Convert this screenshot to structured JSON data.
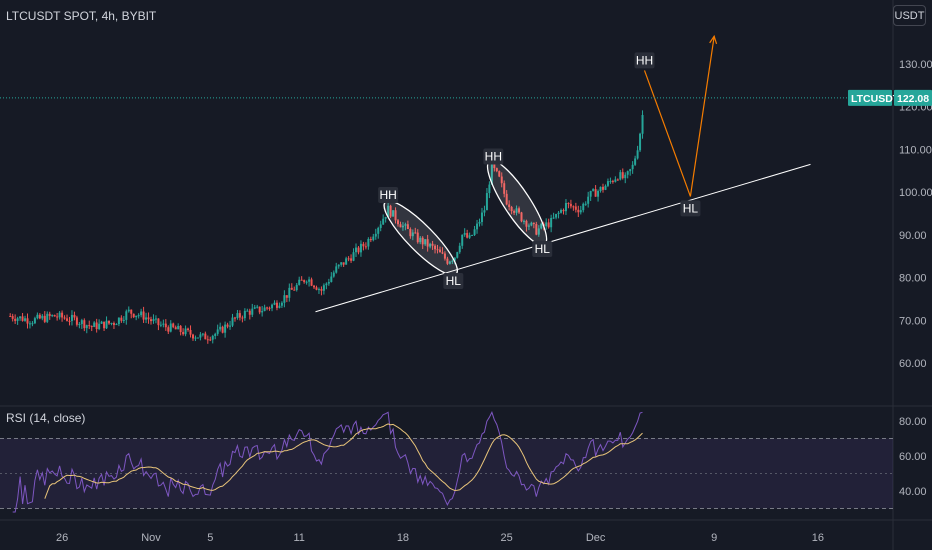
{
  "title": "LTCUSDT SPOT, 4h, BYBIT",
  "currency_button": "USDT",
  "symbol_tag": "LTCUSDT",
  "last_price": "122.08",
  "rsi_label": "RSI (14, close)",
  "colors": {
    "background": "#161a25",
    "up": "#26a69a",
    "down": "#ef5350",
    "rsi_line": "#7e57c2",
    "rsi_ma": "#e8c47a",
    "arrow": "#f57c00",
    "trendline": "#ffffff"
  },
  "chart_data": [
    {
      "type": "candlestick",
      "name": "price",
      "x_ticks": [
        {
          "label": "26",
          "day": -5
        },
        {
          "label": "Nov",
          "day": 1
        },
        {
          "label": "5",
          "day": 5
        },
        {
          "label": "11",
          "day": 11
        },
        {
          "label": "18",
          "day": 18
        },
        {
          "label": "25",
          "day": 25
        },
        {
          "label": "Dec",
          "day": 31
        },
        {
          "label": "9",
          "day": 39
        },
        {
          "label": "16",
          "day": 46
        }
      ],
      "y_ticks": [
        "130.00",
        "120.00",
        "110.00",
        "100.00",
        "90.00",
        "80.00",
        "70.00",
        "60.00"
      ],
      "ylim": [
        55,
        138
      ],
      "last_price": 122.08,
      "close_path": [
        [
          -8.5,
          71
        ],
        [
          -7,
          70
        ],
        [
          -5.5,
          71
        ],
        [
          -4,
          70
        ],
        [
          -3,
          68.5
        ],
        [
          -1.5,
          69.5
        ],
        [
          -0.5,
          72
        ],
        [
          0.5,
          71
        ],
        [
          1.5,
          69
        ],
        [
          2.5,
          68
        ],
        [
          3.5,
          67
        ],
        [
          4.5,
          66
        ],
        [
          5.5,
          67
        ],
        [
          6.5,
          70
        ],
        [
          7.5,
          72
        ],
        [
          8.5,
          72.5
        ],
        [
          9.5,
          74
        ],
        [
          10.5,
          77
        ],
        [
          11.5,
          80
        ],
        [
          12.5,
          77
        ],
        [
          13.5,
          82
        ],
        [
          14.5,
          85
        ],
        [
          15.5,
          88
        ],
        [
          16.5,
          93
        ],
        [
          17,
          96
        ],
        [
          18,
          92
        ],
        [
          19,
          89
        ],
        [
          20,
          87
        ],
        [
          21,
          84
        ],
        [
          21.5,
          85
        ],
        [
          22,
          90
        ],
        [
          22.5,
          89
        ],
        [
          23,
          92
        ],
        [
          23.5,
          96
        ],
        [
          24,
          106
        ],
        [
          24.5,
          103
        ],
        [
          25,
          98
        ],
        [
          26,
          94
        ],
        [
          27,
          91
        ],
        [
          28,
          93
        ],
        [
          28.5,
          95
        ],
        [
          29,
          97
        ],
        [
          30,
          96
        ],
        [
          30.5,
          99
        ],
        [
          31.5,
          101
        ],
        [
          32.5,
          104
        ],
        [
          33,
          103
        ],
        [
          33.5,
          106
        ],
        [
          33.8,
          110
        ],
        [
          34.1,
          116
        ],
        [
          34.3,
          122.1
        ]
      ],
      "annotations": [
        {
          "label": "HH",
          "day": 17.0,
          "price": 97
        },
        {
          "label": "HL",
          "day": 21.4,
          "price": 82
        },
        {
          "label": "HH",
          "day": 24.1,
          "price": 106
        },
        {
          "label": "HL",
          "day": 27.4,
          "price": 89.5
        },
        {
          "label": "HH",
          "day": 34.3,
          "price": 128.5
        },
        {
          "label": "HL",
          "day": 37.4,
          "price": 99
        }
      ],
      "trendline": [
        [
          12.1,
          72
        ],
        [
          45.5,
          106.5
        ]
      ],
      "ellipses": [
        {
          "from": [
            17.0,
            97
          ],
          "to": [
            21.4,
            81.5
          ]
        },
        {
          "from": [
            24.0,
            106.5
          ],
          "to": [
            27.4,
            88.5
          ]
        }
      ],
      "projection": [
        [
          34.3,
          128.5
        ],
        [
          37.4,
          99
        ],
        [
          39.0,
          136.5
        ]
      ]
    },
    {
      "type": "line",
      "name": "RSI (14, close)",
      "y_ticks": [
        "80.00",
        "60.00",
        "40.00"
      ],
      "ylim": [
        28,
        85
      ],
      "band": [
        70,
        30
      ],
      "midline": 50
    }
  ]
}
